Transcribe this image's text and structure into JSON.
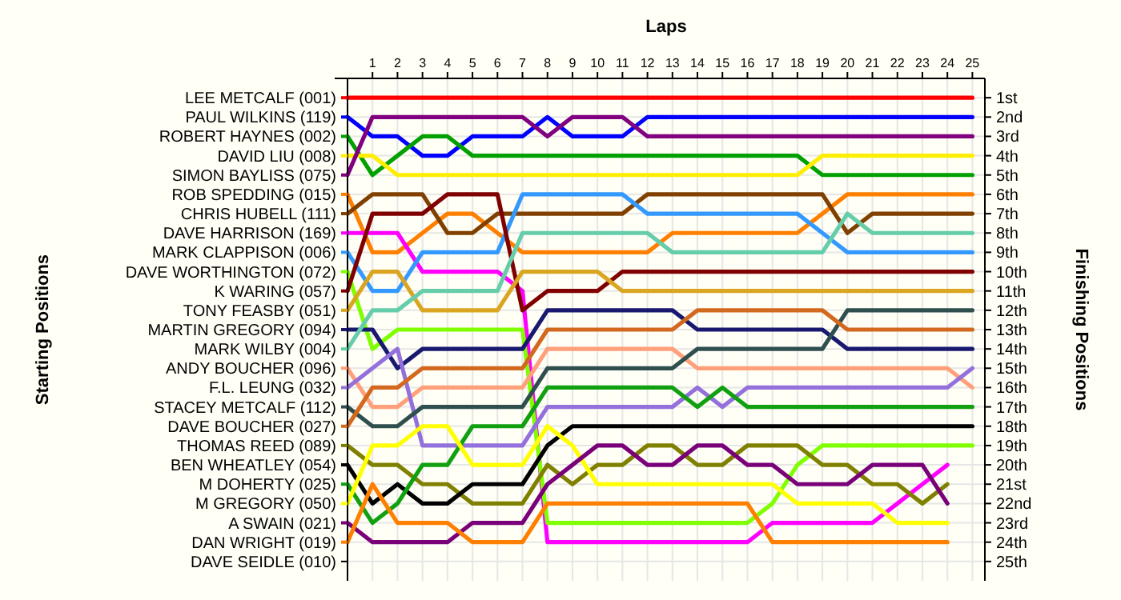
{
  "chart_data": {
    "type": "line",
    "xlabel": "Laps",
    "legend_title": "Starting Positions",
    "legend": "left",
    "annotations": [
      "DAVE SEIDLE (010)"
    ],
    "y2label": "Finishing Positions",
    "grid": true,
    "x": [
      0,
      1,
      2,
      3,
      4,
      5,
      6,
      7,
      8,
      9,
      10,
      11,
      12,
      13,
      14,
      15,
      16,
      17,
      18,
      19,
      20,
      21,
      22,
      23,
      24,
      25
    ],
    "xlim": [
      0,
      25.5
    ],
    "xticks": [
      1,
      2,
      3,
      4,
      5,
      6,
      7,
      8,
      9,
      10,
      11,
      12,
      13,
      14,
      15,
      16,
      17,
      18,
      19,
      20,
      21,
      22,
      23,
      24,
      25
    ],
    "y2lim": [
      26,
      0
    ],
    "y2ticks": [
      {
        "value": 1,
        "label": "1st"
      },
      {
        "value": 2,
        "label": "2nd"
      },
      {
        "value": 3,
        "label": "3rd"
      },
      {
        "value": 4,
        "label": "4th"
      },
      {
        "value": 5,
        "label": "5th"
      },
      {
        "value": 6,
        "label": "6th"
      },
      {
        "value": 7,
        "label": "7th"
      },
      {
        "value": 8,
        "label": "8th"
      },
      {
        "value": 9,
        "label": "9th"
      },
      {
        "value": 10,
        "label": "10th"
      },
      {
        "value": 11,
        "label": "11th"
      },
      {
        "value": 12,
        "label": "12th"
      },
      {
        "value": 13,
        "label": "13th"
      },
      {
        "value": 14,
        "label": "14th"
      },
      {
        "value": 15,
        "label": "15th"
      },
      {
        "value": 16,
        "label": "16th"
      },
      {
        "value": 17,
        "label": "17th"
      },
      {
        "value": 18,
        "label": "18th"
      },
      {
        "value": 19,
        "label": "19th"
      },
      {
        "value": 20,
        "label": "20th"
      },
      {
        "value": 21,
        "label": "21st"
      },
      {
        "value": 22,
        "label": "22nd"
      },
      {
        "value": 23,
        "label": "23rd"
      },
      {
        "value": 24,
        "label": "24th"
      },
      {
        "value": 25,
        "label": "25th"
      }
    ],
    "series": [
      {
        "name": "LEE METCALF (001)",
        "axis": "y2",
        "color": "#ff0000",
        "values": [
          1,
          1,
          1,
          1,
          1,
          1,
          1,
          1,
          1,
          1,
          1,
          1,
          1,
          1,
          1,
          1,
          1,
          1,
          1,
          1,
          1,
          1,
          1,
          1,
          1,
          1
        ]
      },
      {
        "name": "PAUL WILKINS (119)",
        "axis": "y2",
        "color": "#0000ff",
        "values": [
          2,
          3,
          3,
          4,
          4,
          3,
          3,
          3,
          2,
          3,
          3,
          3,
          2,
          2,
          2,
          2,
          2,
          2,
          2,
          2,
          2,
          2,
          2,
          2,
          2,
          2
        ]
      },
      {
        "name": "ROBERT HAYNES (002)",
        "axis": "y2",
        "color": "#00a000",
        "values": [
          3,
          5,
          4,
          3,
          3,
          4,
          4,
          4,
          4,
          4,
          4,
          4,
          4,
          4,
          4,
          4,
          4,
          4,
          4,
          5,
          5,
          5,
          5,
          5,
          5,
          5
        ]
      },
      {
        "name": "DAVID LIU (008)",
        "axis": "y2",
        "color": "#ffee00",
        "values": [
          4,
          4,
          5,
          5,
          5,
          5,
          5,
          5,
          5,
          5,
          5,
          5,
          5,
          5,
          5,
          5,
          5,
          5,
          5,
          4,
          4,
          4,
          4,
          4,
          4,
          4
        ]
      },
      {
        "name": "SIMON BAYLISS (075)",
        "axis": "y2",
        "color": "#800080",
        "values": [
          5,
          2,
          2,
          2,
          2,
          2,
          2,
          2,
          3,
          2,
          2,
          2,
          3,
          3,
          3,
          3,
          3,
          3,
          3,
          3,
          3,
          3,
          3,
          3,
          3,
          3
        ]
      },
      {
        "name": "ROB SPEDDING (015)",
        "axis": "y2",
        "color": "#ff8000",
        "values": [
          6,
          9,
          9,
          8,
          7,
          7,
          8,
          9,
          9,
          9,
          9,
          9,
          9,
          8,
          8,
          8,
          8,
          8,
          8,
          7,
          6,
          6,
          6,
          6,
          6,
          6
        ]
      },
      {
        "name": "CHRIS HUBELL (111)",
        "axis": "y2",
        "color": "#804000",
        "values": [
          7,
          6,
          6,
          6,
          8,
          8,
          7,
          7,
          7,
          7,
          7,
          7,
          6,
          6,
          6,
          6,
          6,
          6,
          6,
          6,
          8,
          7,
          7,
          7,
          7,
          7
        ]
      },
      {
        "name": "DAVE HARRISON (169)",
        "axis": "y2",
        "color": "#ff00ff",
        "values": [
          8,
          8,
          8,
          10,
          10,
          10,
          10,
          11,
          24,
          24,
          24,
          24,
          24,
          24,
          24,
          24,
          24,
          23,
          23,
          23,
          23,
          23,
          22,
          21,
          20,
          null
        ]
      },
      {
        "name": "MARK CLAPPISON (006)",
        "axis": "y2",
        "color": "#3399ff",
        "values": [
          9,
          11,
          11,
          9,
          9,
          9,
          9,
          6,
          6,
          6,
          6,
          6,
          7,
          7,
          7,
          7,
          7,
          7,
          7,
          8,
          9,
          9,
          9,
          9,
          9,
          9
        ]
      },
      {
        "name": "DAVE WORTHINGTON (072)",
        "axis": "y2",
        "color": "#80ff00",
        "values": [
          10,
          14,
          13,
          13,
          13,
          13,
          13,
          13,
          23,
          23,
          23,
          23,
          23,
          23,
          23,
          23,
          23,
          22,
          20,
          19,
          19,
          19,
          19,
          19,
          19,
          19
        ]
      },
      {
        "name": "K WARING (057)",
        "axis": "y2",
        "color": "#800000",
        "values": [
          11,
          7,
          7,
          7,
          6,
          6,
          6,
          12,
          11,
          11,
          11,
          10,
          10,
          10,
          10,
          10,
          10,
          10,
          10,
          10,
          10,
          10,
          10,
          10,
          10,
          10
        ]
      },
      {
        "name": "TONY FEASBY (051)",
        "axis": "y2",
        "color": "#daa520",
        "values": [
          12,
          10,
          10,
          12,
          12,
          12,
          12,
          10,
          10,
          10,
          10,
          11,
          11,
          11,
          11,
          11,
          11,
          11,
          11,
          11,
          11,
          11,
          11,
          11,
          11,
          11
        ]
      },
      {
        "name": "MARTIN GREGORY (094)",
        "axis": "y2",
        "color": "#191970",
        "values": [
          13,
          13,
          15,
          14,
          14,
          14,
          14,
          14,
          12,
          12,
          12,
          12,
          12,
          12,
          13,
          13,
          13,
          13,
          13,
          13,
          14,
          14,
          14,
          14,
          14,
          14
        ]
      },
      {
        "name": "MARK WILBY (004)",
        "axis": "y2",
        "color": "#66cdaa",
        "values": [
          14,
          12,
          12,
          11,
          11,
          11,
          11,
          8,
          8,
          8,
          8,
          8,
          8,
          9,
          9,
          9,
          9,
          9,
          9,
          9,
          7,
          8,
          8,
          8,
          8,
          8
        ]
      },
      {
        "name": "ANDY BOUCHER (096)",
        "axis": "y2",
        "color": "#ffa07a",
        "values": [
          15,
          17,
          17,
          16,
          16,
          16,
          16,
          16,
          14,
          14,
          14,
          14,
          14,
          14,
          15,
          15,
          15,
          15,
          15,
          15,
          15,
          15,
          15,
          15,
          15,
          16
        ]
      },
      {
        "name": "F.L. LEUNG (032)",
        "axis": "y2",
        "color": "#9370db",
        "values": [
          16,
          15,
          14,
          19,
          19,
          19,
          19,
          19,
          17,
          17,
          17,
          17,
          17,
          17,
          16,
          17,
          16,
          16,
          16,
          16,
          16,
          16,
          16,
          16,
          16,
          15
        ]
      },
      {
        "name": "STACEY METCALF (112)",
        "axis": "y2",
        "color": "#2f4f4f",
        "values": [
          17,
          18,
          18,
          17,
          17,
          17,
          17,
          17,
          15,
          15,
          15,
          15,
          15,
          15,
          14,
          14,
          14,
          14,
          14,
          14,
          12,
          12,
          12,
          12,
          12,
          12
        ]
      },
      {
        "name": "DAVE BOUCHER (027)",
        "axis": "y2",
        "color": "#d2691e",
        "values": [
          18,
          16,
          16,
          15,
          15,
          15,
          15,
          15,
          13,
          13,
          13,
          13,
          13,
          13,
          12,
          12,
          12,
          12,
          12,
          12,
          13,
          13,
          13,
          13,
          13,
          13
        ]
      },
      {
        "name": "THOMAS REED (089)",
        "axis": "y2",
        "color": "#808000",
        "values": [
          19,
          20,
          20,
          21,
          21,
          22,
          22,
          22,
          20,
          21,
          20,
          20,
          19,
          19,
          20,
          20,
          19,
          19,
          19,
          20,
          20,
          21,
          21,
          22,
          21,
          null
        ]
      },
      {
        "name": "BEN WHEATLEY (054)",
        "axis": "y2",
        "color": "#000000",
        "values": [
          20,
          22,
          21,
          22,
          22,
          21,
          21,
          21,
          19,
          18,
          18,
          18,
          18,
          18,
          18,
          18,
          18,
          18,
          18,
          18,
          18,
          18,
          18,
          18,
          18,
          18
        ]
      },
      {
        "name": "M DOHERTY (025)",
        "axis": "y2",
        "color": "#10a010",
        "values": [
          21,
          23,
          22,
          20,
          20,
          18,
          18,
          18,
          16,
          16,
          16,
          16,
          16,
          16,
          17,
          16,
          17,
          17,
          17,
          17,
          17,
          17,
          17,
          17,
          17,
          17
        ]
      },
      {
        "name": "M GREGORY (050)",
        "axis": "y2",
        "color": "#ffff00",
        "values": [
          22,
          19,
          19,
          18,
          18,
          20,
          20,
          20,
          18,
          19,
          21,
          21,
          21,
          21,
          21,
          21,
          21,
          21,
          22,
          22,
          22,
          22,
          23,
          23,
          23,
          null
        ]
      },
      {
        "name": "A SWAIN (021)",
        "axis": "y2",
        "color": "#7a007a",
        "values": [
          23,
          24,
          24,
          24,
          24,
          23,
          23,
          23,
          21,
          20,
          19,
          19,
          20,
          20,
          19,
          19,
          20,
          20,
          21,
          21,
          21,
          20,
          20,
          20,
          22,
          null
        ]
      },
      {
        "name": "DAN WRIGHT (019)",
        "axis": "y2",
        "color": "#ff7f00",
        "values": [
          24,
          21,
          23,
          23,
          23,
          24,
          24,
          24,
          22,
          22,
          22,
          22,
          22,
          22,
          22,
          22,
          22,
          24,
          24,
          24,
          24,
          24,
          24,
          24,
          24,
          null
        ]
      }
    ]
  }
}
